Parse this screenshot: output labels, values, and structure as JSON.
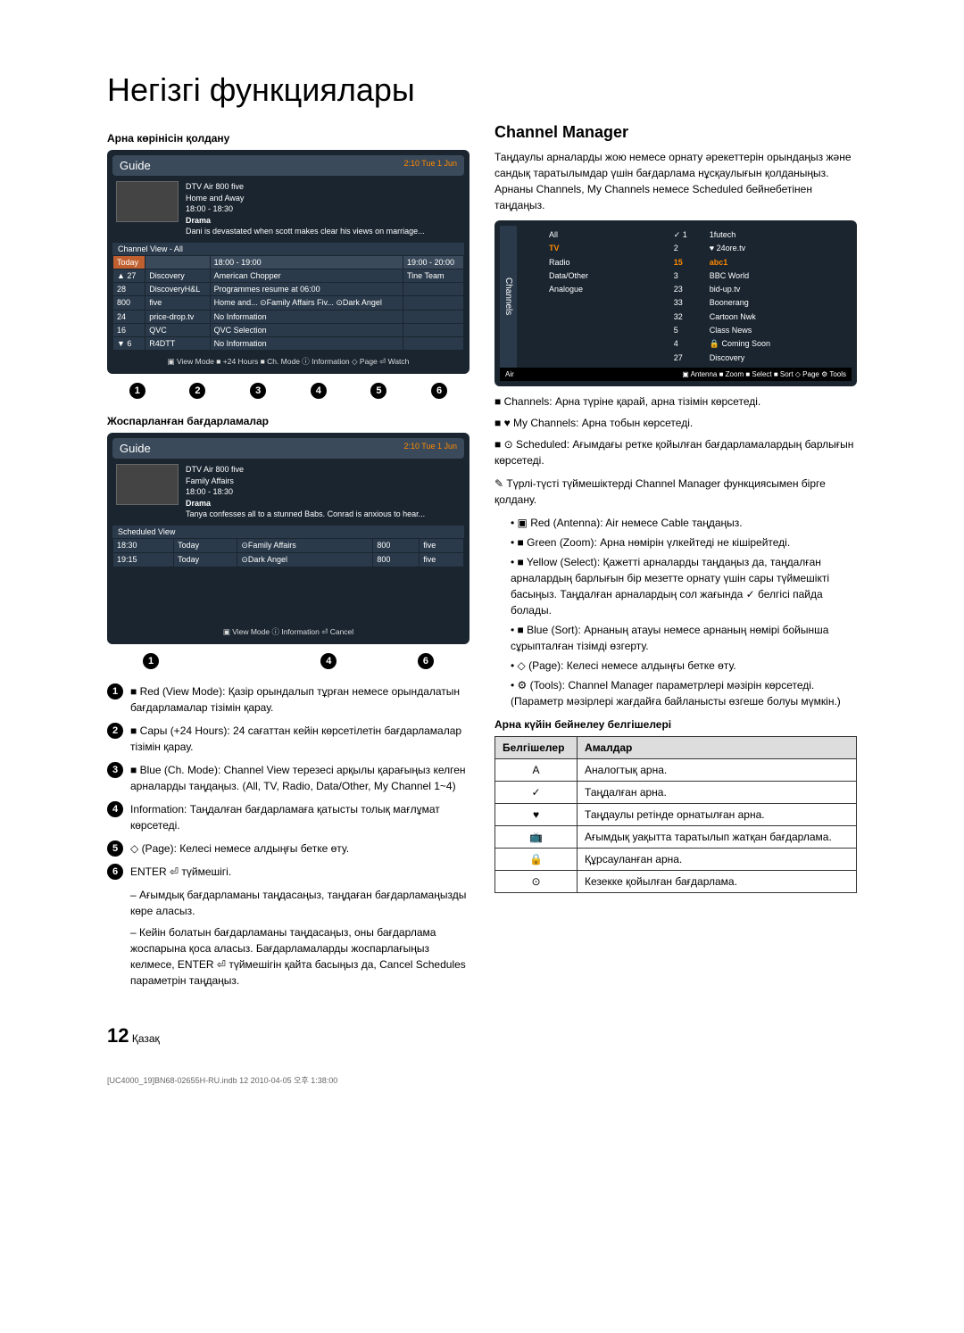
{
  "title": "Негізгі функциялары",
  "left": {
    "sub1": "Арна көрінісін қолдану",
    "guide1": {
      "label": "Guide",
      "time": "2:10 Tue 1 Jun",
      "meta1": "DTV Air 800 five",
      "meta2": "Home and Away",
      "meta3": "18:00 - 18:30",
      "genre": "Drama",
      "desc": "Dani is devastated when scott makes clear his views on marriage...",
      "strip": "Channel View - All",
      "h_today": "Today",
      "h_t1": "18:00 - 19:00",
      "h_t2": "19:00 - 20:00",
      "rows": [
        [
          "▲ 27",
          "Discovery",
          "American Chopper",
          "Tine Team"
        ],
        [
          "28",
          "DiscoveryH&L",
          "Programmes resume at 06:00",
          ""
        ],
        [
          "800",
          "five",
          "Home and...   ⊙Family Affairs   Fiv...   ⊙Dark Angel",
          ""
        ],
        [
          "24",
          "price-drop.tv",
          "No Information",
          ""
        ],
        [
          "16",
          "QVC",
          "QVC Selection",
          ""
        ],
        [
          "▼ 6",
          "R4DTT",
          "No Information",
          ""
        ]
      ],
      "foot": "▣ View Mode  ■ +24 Hours  ■ Ch. Mode  ⓘ Information  ◇ Page  ⏎ Watch"
    },
    "sub2": "Жоспарланған бағдарламалар",
    "guide2": {
      "label": "Guide",
      "time": "2:10 Tue 1 Jun",
      "meta1": "DTV Air 800 five",
      "meta2": "Family Affairs",
      "meta3": "18:00 - 18:30",
      "genre": "Drama",
      "desc": "Tanya confesses all to a stunned Babs. Conrad is anxious to hear...",
      "strip": "Scheduled View",
      "rows": [
        [
          "18:30",
          "Today",
          "⊙Family Affairs",
          "800",
          "five"
        ],
        [
          "19:15",
          "Today",
          "⊙Dark Angel",
          "800",
          "five"
        ]
      ],
      "foot": "▣ View Mode    ⓘ Information   ⏎ Cancel"
    },
    "items": [
      {
        "n": "1",
        "t": "■ Red (View Mode): Қазір орындалып тұрған немесе орындалатын бағдарламалар тізімін қарау."
      },
      {
        "n": "2",
        "t": "■ Сары (+24 Hours): 24 сағаттан кейін көрсетілетін бағдарламалар тізімін қарау."
      },
      {
        "n": "3",
        "t": "■ Blue (Ch. Mode): Channel View терезесі арқылы қарағыңыз келген арналарды таңдаңыз. (All, TV, Radio, Data/Other, My Channel 1~4)"
      },
      {
        "n": "4",
        "t": "Information: Таңдалған бағдарламаға қатысты толық мағлұмат көрсетеді."
      },
      {
        "n": "5",
        "t": "◇ (Page): Келесі немесе алдыңғы бетке өту."
      },
      {
        "n": "6",
        "t": "ENTER ⏎ түймешігі."
      }
    ],
    "subs": [
      "Ағымдық бағдарламаны таңдасаңыз, таңдаған бағдарламаңызды көре аласыз.",
      "Кейін болатын бағдарламаны таңдасаңыз, оны бағдарлама жоспарына қоса аласыз. Бағдарламаларды жоспарлағыңыз келмесе, ENTER ⏎ түймешігін қайта басыңыз да, Cancel Schedules параметрін таңдаңыз."
    ]
  },
  "right": {
    "h2": "Channel Manager",
    "intro": "Таңдаулы арналарды жою немесе орнату әрекеттерін орындаңыз және сандық таратылымдар үшін бағдарлама нұсқаулығын қолданыңыз. Арнаны Channels, My Channels немесе Scheduled бейнебетінен таңдаңыз.",
    "cm": {
      "side": "Channels",
      "c1": [
        "All",
        "TV",
        "Radio",
        "Data/Other",
        "Analogue"
      ],
      "c2_top": [
        "✓ 1",
        "2"
      ],
      "c2_hi": "15",
      "c2_rest": [
        "3",
        "23",
        "33",
        "32",
        "5",
        "4",
        "27"
      ],
      "c3_top": [
        "1futech",
        "♥ 24ore.tv"
      ],
      "c3_hi": "abc1",
      "c3_rest": [
        "BBC World",
        "bid-up.tv",
        "Boonerang",
        "Cartoon Nwk",
        "Class News",
        "🔒 Coming Soon",
        "Discovery"
      ],
      "foot_l": "Air",
      "foot_r": "▣ Antenna  ■ Zoom  ■ Select  ■ Sort  ◇ Page  ⚙ Tools"
    },
    "blk": [
      "Channels: Арна түріне қарай, арна тізімін көрсетеді.",
      "♥ My Channels: Арна тобын көрсетеді.",
      "⊙ Scheduled: Ағымдағы ретке қойылған бағдарламалардың барлығын көрсетеді."
    ],
    "note": "Түрлі-түсті түймешіктерді Channel Manager функциясымен бірге қолдану.",
    "buls": [
      "▣ Red (Antenna): Air немесе Cable таңдаңыз.",
      "■ Green (Zoom): Арна нөмірін үлкейтеді не кішірейтеді.",
      "■ Yellow (Select): Қажетті арналарды таңдаңыз да, таңдалған арналардың барлығын бір мезетте орнату үшін сары түймешікті басыңыз. Таңдалған арналардың сол жағында ✓ белгісі пайда болады.",
      "■ Blue (Sort): Арнаның атауы немесе арнаның нөмірі бойынша сұрыпталған тізімді өзгерту.",
      "◇ (Page): Келесі немесе алдыңғы бетке өту.",
      "⚙ (Tools): Channel Manager параметрлері мәзірін көрсетеді. (Параметр мәзірлері жағдайға байланысты өзгеше болуы мүмкін.)"
    ],
    "tbl_head": "Арна күйін бейнелеу белгішелері",
    "tbl_h1": "Белгішелер",
    "tbl_h2": "Амалдар",
    "tbl": [
      [
        "A",
        "Аналогтық арна."
      ],
      [
        "✓",
        "Таңдалған арна."
      ],
      [
        "♥",
        "Таңдаулы ретінде орнатылған арна."
      ],
      [
        "📺",
        "Ағымдық уақытта таратылып жатқан бағдарлама."
      ],
      [
        "🔒",
        "Құрсауланған арна."
      ],
      [
        "⊙",
        "Кезекке қойылған бағдарлама."
      ]
    ]
  },
  "page_num": "12",
  "page_lang": "Қазақ",
  "bottom": "[UC4000_19]BN68-02655H-RU.indb   12                                                                                                                                                    2010-04-05   오후 1:38:00"
}
